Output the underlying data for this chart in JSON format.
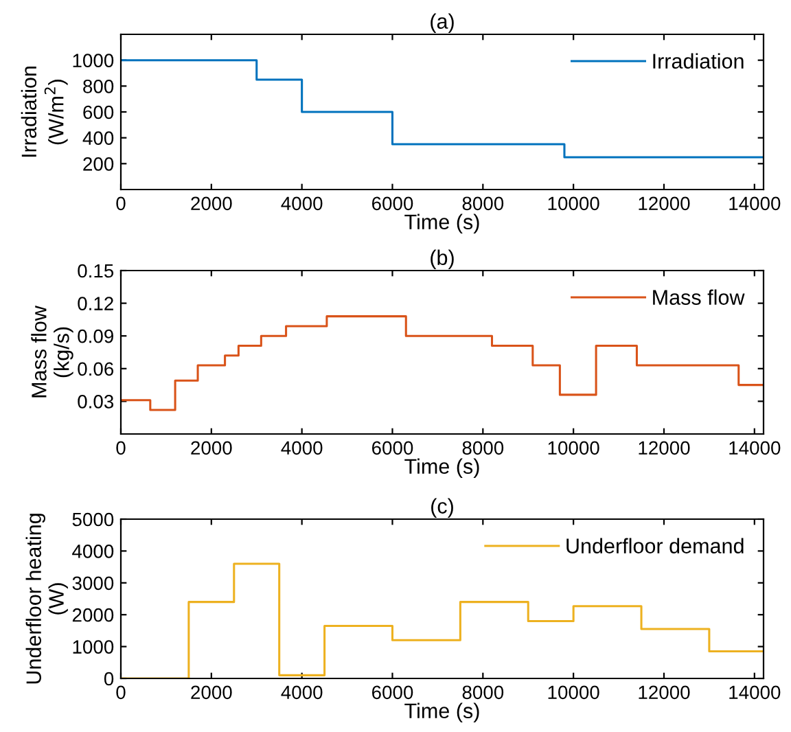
{
  "chart_data": [
    {
      "type": "step",
      "title": "(a)",
      "xlabel": "Time (s)",
      "ylabel": "Irradiation\n(W/m$^{2}$)",
      "xlim": [
        0,
        14200
      ],
      "xticks": [
        0,
        2000,
        4000,
        6000,
        8000,
        10000,
        12000,
        14000
      ],
      "ylim": [
        0,
        1200
      ],
      "yticks": [
        200,
        400,
        600,
        800,
        1000
      ],
      "legend": "top right",
      "grid": false,
      "series": [
        {
          "name": "Irradiation",
          "color": "#0072bd",
          "x": [
            0,
            3000,
            4000,
            6000,
            9800,
            14200
          ],
          "values": [
            1000,
            850,
            600,
            350,
            250,
            250
          ]
        }
      ]
    },
    {
      "type": "step",
      "title": "(b)",
      "xlabel": "Time (s)",
      "ylabel": "Mass flow\n(kg/s)",
      "xlim": [
        0,
        14200
      ],
      "xticks": [
        0,
        2000,
        4000,
        6000,
        8000,
        10000,
        12000,
        14000
      ],
      "ylim": [
        0,
        0.15
      ],
      "yticks": [
        {
          "value": 0.03,
          "label": "0.03"
        },
        {
          "value": 0.06,
          "label": "0.06"
        },
        {
          "value": 0.09,
          "label": "0.09"
        },
        {
          "value": 0.12,
          "label": "0.12"
        },
        {
          "value": 0.15,
          "label": "0.15"
        }
      ],
      "legend": "top right",
      "grid": false,
      "series": [
        {
          "name": "Mass flow",
          "color": "#d95319",
          "x": [
            0,
            650,
            1200,
            1700,
            2300,
            2600,
            3100,
            3650,
            4550,
            6300,
            8200,
            9100,
            9700,
            10500,
            11400,
            13650,
            14200
          ],
          "values": [
            0.031,
            0.022,
            0.049,
            0.063,
            0.072,
            0.081,
            0.09,
            0.099,
            0.108,
            0.09,
            0.081,
            0.063,
            0.036,
            0.081,
            0.063,
            0.045,
            0.045
          ]
        }
      ]
    },
    {
      "type": "step",
      "title": "(c)",
      "xlabel": "Time (s)",
      "ylabel": "Underfloor heating\n(W)",
      "xlim": [
        0,
        14200
      ],
      "xticks": [
        0,
        2000,
        4000,
        6000,
        8000,
        10000,
        12000,
        14000
      ],
      "ylim": [
        0,
        5000
      ],
      "yticks": [
        0,
        1000,
        2000,
        3000,
        4000,
        5000
      ],
      "legend": "top right",
      "grid": false,
      "series": [
        {
          "name": "Underfloor demand",
          "color": "#edb120",
          "x": [
            0,
            1500,
            2500,
            3500,
            4500,
            6000,
            7500,
            9000,
            10000,
            11500,
            13000,
            14200
          ],
          "values": [
            0,
            2400,
            3600,
            100,
            1650,
            1200,
            2400,
            1800,
            2270,
            1550,
            850,
            850
          ]
        }
      ]
    }
  ]
}
